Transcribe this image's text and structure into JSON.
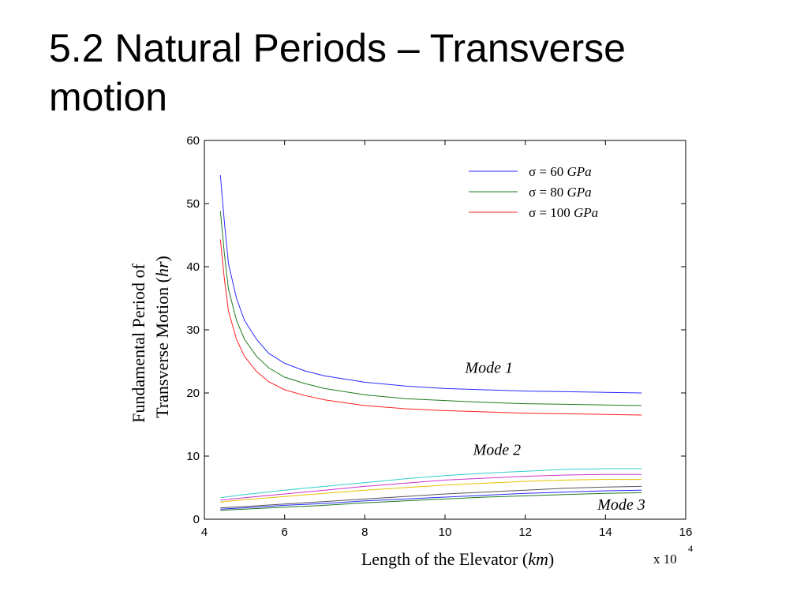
{
  "slide": {
    "title_line1": "5.2 Natural Periods – Transverse",
    "title_line2": "motion"
  },
  "chart_data": {
    "type": "line",
    "ylabel_line1": "Fundamental Period of",
    "ylabel_line2_prefix": "Transverse Motion (",
    "ylabel_line2_unit": "hr",
    "ylabel_line2_suffix": ")",
    "xlabel_prefix": "Length of the Elevator (",
    "xlabel_unit": "km",
    "xlabel_suffix": ")",
    "x_multiplier_text": "x 10",
    "x_multiplier_exp": "4",
    "xlim": [
      4,
      16
    ],
    "ylim": [
      0,
      60
    ],
    "xticks": [
      4,
      6,
      8,
      10,
      12,
      14,
      16
    ],
    "yticks": [
      0,
      10,
      20,
      30,
      40,
      50,
      60
    ],
    "legend_position": "top-right",
    "legend": [
      {
        "prefix": "σ = 60 ",
        "unit": "GPa",
        "color": "#2b2bff"
      },
      {
        "prefix": "σ = 80 ",
        "unit": "GPa",
        "color": "#1f7a1f"
      },
      {
        "prefix": "σ = 100 ",
        "unit": "GPa",
        "color": "#ff2020"
      }
    ],
    "annotations": [
      {
        "text": "Mode 1",
        "x": 10.5,
        "y": 23.2
      },
      {
        "text": "Mode 2",
        "x": 10.7,
        "y": 10.2
      },
      {
        "text": "Mode 3",
        "x": 13.8,
        "y": 1.5
      }
    ],
    "series": [
      {
        "name": "σ = 60 GPa",
        "group": "Mode 1",
        "color": "#2b2bff",
        "x": [
          4.4,
          4.5,
          4.6,
          4.8,
          5.0,
          5.3,
          5.6,
          6.0,
          6.5,
          7.0,
          8.0,
          9.0,
          10.0,
          11.0,
          12.0,
          13.0,
          14.0,
          14.9
        ],
        "y": [
          54.5,
          47.0,
          40.5,
          35.0,
          31.5,
          28.5,
          26.3,
          24.7,
          23.5,
          22.7,
          21.7,
          21.1,
          20.7,
          20.5,
          20.3,
          20.2,
          20.1,
          20.0
        ]
      },
      {
        "name": "σ = 80 GPa",
        "group": "Mode 1",
        "color": "#1f7a1f",
        "x": [
          4.4,
          4.5,
          4.6,
          4.8,
          5.0,
          5.3,
          5.6,
          6.0,
          6.5,
          7.0,
          8.0,
          9.0,
          10.0,
          11.0,
          12.0,
          13.0,
          14.0,
          14.9
        ],
        "y": [
          48.8,
          42.0,
          36.5,
          31.5,
          28.5,
          25.8,
          24.0,
          22.5,
          21.5,
          20.7,
          19.7,
          19.1,
          18.8,
          18.5,
          18.3,
          18.2,
          18.1,
          18.0
        ]
      },
      {
        "name": "σ = 100 GPa",
        "group": "Mode 1",
        "color": "#ff2020",
        "x": [
          4.4,
          4.5,
          4.6,
          4.8,
          5.0,
          5.3,
          5.6,
          6.0,
          6.5,
          7.0,
          8.0,
          9.0,
          10.0,
          11.0,
          12.0,
          13.0,
          14.0,
          14.9
        ],
        "y": [
          44.3,
          38.0,
          33.0,
          28.5,
          25.8,
          23.4,
          21.8,
          20.5,
          19.6,
          18.9,
          18.0,
          17.5,
          17.2,
          17.0,
          16.8,
          16.7,
          16.6,
          16.5
        ]
      },
      {
        "group": "Mode 2",
        "color": "#33cccc",
        "x": [
          4.4,
          5,
          6,
          7,
          8,
          9,
          10,
          11,
          12,
          13,
          14,
          14.9
        ],
        "y": [
          3.4,
          3.9,
          4.6,
          5.2,
          5.8,
          6.4,
          6.9,
          7.3,
          7.6,
          7.9,
          8.0,
          8.0
        ]
      },
      {
        "group": "Mode 2",
        "color": "#cc33cc",
        "x": [
          4.4,
          5,
          6,
          7,
          8,
          9,
          10,
          11,
          12,
          13,
          14,
          14.9
        ],
        "y": [
          3.0,
          3.4,
          4.0,
          4.6,
          5.2,
          5.7,
          6.2,
          6.5,
          6.8,
          7.0,
          7.1,
          7.1
        ]
      },
      {
        "group": "Mode 2",
        "color": "#e6c200",
        "x": [
          4.4,
          5,
          6,
          7,
          8,
          9,
          10,
          11,
          12,
          13,
          14,
          14.9
        ],
        "y": [
          2.7,
          3.1,
          3.6,
          4.1,
          4.6,
          5.0,
          5.4,
          5.7,
          6.0,
          6.2,
          6.3,
          6.3
        ]
      },
      {
        "group": "Mode 3",
        "color": "#555555",
        "x": [
          4.4,
          5,
          6,
          7,
          8,
          9,
          10,
          11,
          12,
          13,
          14,
          14.9
        ],
        "y": [
          1.8,
          2.0,
          2.4,
          2.8,
          3.2,
          3.6,
          4.0,
          4.3,
          4.6,
          4.9,
          5.1,
          5.2
        ]
      },
      {
        "group": "Mode 3",
        "color": "#2b2bff",
        "x": [
          4.4,
          5,
          6,
          7,
          8,
          9,
          10,
          11,
          12,
          13,
          14,
          14.9
        ],
        "y": [
          1.6,
          1.8,
          2.2,
          2.5,
          2.9,
          3.2,
          3.5,
          3.8,
          4.1,
          4.3,
          4.5,
          4.6
        ]
      },
      {
        "group": "Mode 3",
        "color": "#1f7a1f",
        "x": [
          4.4,
          5,
          6,
          7,
          8,
          9,
          10,
          11,
          12,
          13,
          14,
          14.9
        ],
        "y": [
          1.4,
          1.6,
          1.9,
          2.2,
          2.6,
          2.9,
          3.2,
          3.5,
          3.7,
          3.9,
          4.1,
          4.2
        ]
      }
    ]
  }
}
